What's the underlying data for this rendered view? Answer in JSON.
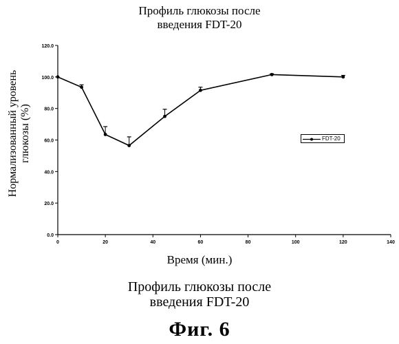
{
  "chart_data": {
    "type": "line",
    "title_lines": [
      "Профиль глюкозы после",
      "введения FDT-20"
    ],
    "xlabel": "Время (мин.)",
    "ylabel_lines": [
      "Нормализованный уровень",
      "глюкозы (%)"
    ],
    "xlim": [
      0,
      140
    ],
    "ylim": [
      0,
      120
    ],
    "xticks": [
      "0",
      "20",
      "40",
      "60",
      "80",
      "100",
      "120",
      "140"
    ],
    "yticks": [
      "0.0",
      "20.0",
      "40.0",
      "60.0",
      "80.0",
      "100.0",
      "120.0"
    ],
    "grid": false,
    "legend_position": "right",
    "series": [
      {
        "name": "FDT-20",
        "x": [
          0,
          10,
          20,
          30,
          45,
          60,
          90,
          120
        ],
        "y": [
          100.0,
          93.5,
          63.5,
          56.5,
          75.0,
          91.5,
          101.5,
          100.0
        ],
        "error_plus": [
          0,
          1.5,
          5.0,
          5.5,
          4.5,
          2.0,
          0.5,
          1.0
        ]
      }
    ]
  },
  "caption_lines": [
    "Профиль глюкозы после",
    "введения FDT-20"
  ],
  "figure_label": "Фиг. 6"
}
